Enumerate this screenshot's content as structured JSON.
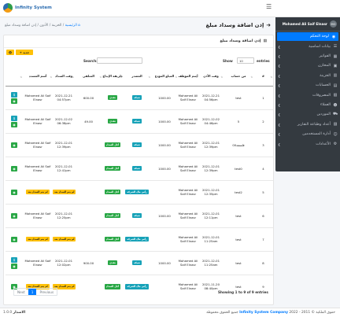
{
  "topbar": {
    "brand": "Infinity System",
    "menu_icon": "hamburger-icon"
  },
  "sidebar": {
    "user": "Mohamed Ali Saif Elnasr",
    "avatar": "MO",
    "items": [
      {
        "label": "لوحة التحكم",
        "icon": "dashboard-icon",
        "active": true,
        "arrow": ""
      },
      {
        "label": "بيانات اساسية",
        "icon": "database-icon",
        "arrow": "❮"
      },
      {
        "label": "الفواتير",
        "icon": "invoice-icon",
        "arrow": "❮"
      },
      {
        "label": "المخازن",
        "icon": "warehouse-icon",
        "arrow": "❮"
      },
      {
        "label": "الخزينة",
        "icon": "safe-icon",
        "arrow": "❮"
      },
      {
        "label": "الحسابات",
        "icon": "accounts-icon",
        "arrow": "❮"
      },
      {
        "label": "المصروفات",
        "icon": "expenses-icon",
        "arrow": "❮"
      },
      {
        "label": "العملاء",
        "icon": "clients-icon",
        "arrow": "❮"
      },
      {
        "label": "الموردين",
        "icon": "suppliers-icon",
        "arrow": "❮"
      },
      {
        "label": "أعداد وطباعة التقارير",
        "icon": "reports-icon",
        "arrow": "❮"
      },
      {
        "label": "أدارة المستخدمين",
        "icon": "users-icon",
        "arrow": "❮"
      },
      {
        "label": "الأعدادات",
        "icon": "settings-icon",
        "arrow": "❮"
      }
    ]
  },
  "header": {
    "title": "إذن اضافة وسداد مبلغ",
    "breadcrumb": {
      "home": "الرئيسية",
      "b1": "الخزينة",
      "b2": "الأذون",
      "b3": "إذن اضافة وسداد مبلغ"
    }
  },
  "card": {
    "title": "إذن اضافة وسداد مبلغ",
    "new_button": "+ جديد",
    "search_label": "Search:",
    "show_label": "Show",
    "show_value": "10",
    "entries_label": "entries",
    "columns": [
      "#",
      "من حساب",
      "وقت الأذن",
      "أسم الموظف",
      "المبلغ المودع",
      "المصدر",
      "طريقة الإيداع",
      "المتلقي",
      "وقت السداد",
      "أسم المسدد",
      ""
    ]
  },
  "rows": [
    {
      "n": "1",
      "from": "test",
      "time": "2021-12-21 04:56pm",
      "emp": "Mohamed Ali Saif Elnasr",
      "amount": "1000.00",
      "source": "شبكة",
      "method": "نقدي",
      "receiver": "600.00",
      "paytime": "2021-12-21 04:57pm",
      "payer": "Mohamed Ali Saif Elnasr",
      "actions": [
        "dollar",
        "eye"
      ]
    },
    {
      "n": "2",
      "from": "5",
      "time": "2021-12-02 04:46pm",
      "emp": "Mohamed Ali Saif Elnasr",
      "amount": "1000.00",
      "source": "شبكة",
      "method": "نقدي",
      "receiver": "49.00",
      "paytime": "2021-12-02 06:38pm",
      "payer": "Mohamed Ali Saif Elnasr",
      "actions": [
        "dollar",
        "eye"
      ]
    },
    {
      "n": "3",
      "from": "فلسفه00",
      "time": "2021-12-01 12:39pm",
      "emp": "Mohamed Ali Saif Elnasr",
      "amount": "1000.00",
      "source": "شبكة",
      "method": "أجل السداد",
      "receiver": "",
      "paytime": "2021-12-01 12:39pm",
      "payer": "Mohamed Ali Saif Elnasr",
      "actions": [
        "eye"
      ]
    },
    {
      "n": "4",
      "from": "test0",
      "time": "2021-12-01 12:39pm",
      "emp": "Mohamed Ali Saif Elnasr",
      "amount": "1000.00",
      "source": "شبكة",
      "method": "أجل السداد",
      "receiver": "",
      "paytime": "2021-12-01 12:41pm",
      "payer": "Mohamed Ali Saif Elnasr",
      "actions": [
        "eye"
      ]
    },
    {
      "n": "5",
      "from": "test2",
      "time": "2021-12-01 12:35pm",
      "emp": "Mohamed Ali Saif Elnasr",
      "amount": "",
      "source": "رأس مال الشركة",
      "method": "أجل السداد",
      "receiver": "",
      "paytime": "لم يتم السداد بعد",
      "payer": "لم يتم السداد بعد",
      "actions": [
        "eye"
      ]
    },
    {
      "n": "6",
      "from": "test",
      "time": "2021-12-01 12:11pm",
      "emp": "Mohamed Ali Saif Elnasr",
      "amount": "1000.00",
      "source": "شبكة",
      "method": "أجل السداد",
      "receiver": "",
      "paytime": "2021-12-01 12:25pm",
      "payer": "Mohamed Ali Saif Elnasr",
      "actions": [
        "eye"
      ]
    },
    {
      "n": "7",
      "from": "test",
      "time": "2021-12-01 11:25am",
      "emp": "Mohamed Ali Saif Elnasr",
      "amount": "",
      "source": "رأس مال الشركة",
      "method": "أجل السداد",
      "receiver": "",
      "paytime": "لم يتم السداد بعد",
      "payer": "لم يتم السداد بعد",
      "actions": [
        "eye"
      ]
    },
    {
      "n": "8",
      "from": "test",
      "time": "2021-12-01 11:25am",
      "emp": "Mohamed Ali Saif Elnasr",
      "amount": "1000.00",
      "source": "شبكة",
      "method": "نقدي",
      "receiver": "900.00",
      "paytime": "2021-12-01 12:02pm",
      "payer": "Mohamed Ali Saif Elnasr",
      "actions": [
        "dollar",
        "eye"
      ]
    },
    {
      "n": "9",
      "from": "test",
      "time": "2021-11-20 08:40pm",
      "emp": "Mohamed Ali Saif Elnasr",
      "amount": "",
      "source": "رأس مال الشركة",
      "method": "أجل السداد",
      "receiver": "",
      "paytime": "لم يتم السداد بعد",
      "payer": "لم يتم السداد بعد",
      "actions": [
        "eye"
      ]
    }
  ],
  "pager": {
    "prev": "Previous",
    "page": "1",
    "next": "Next"
  },
  "showing": "Showing 1 to 9 of 9 entries",
  "footer": {
    "copy_pre": "حقوق الملكية © 2011 - 2022",
    "company": "Infinity System Company",
    "copy_post": "جميع الحقوق محفوظة",
    "version_label": "الاصدار",
    "version": "1.0.0"
  }
}
